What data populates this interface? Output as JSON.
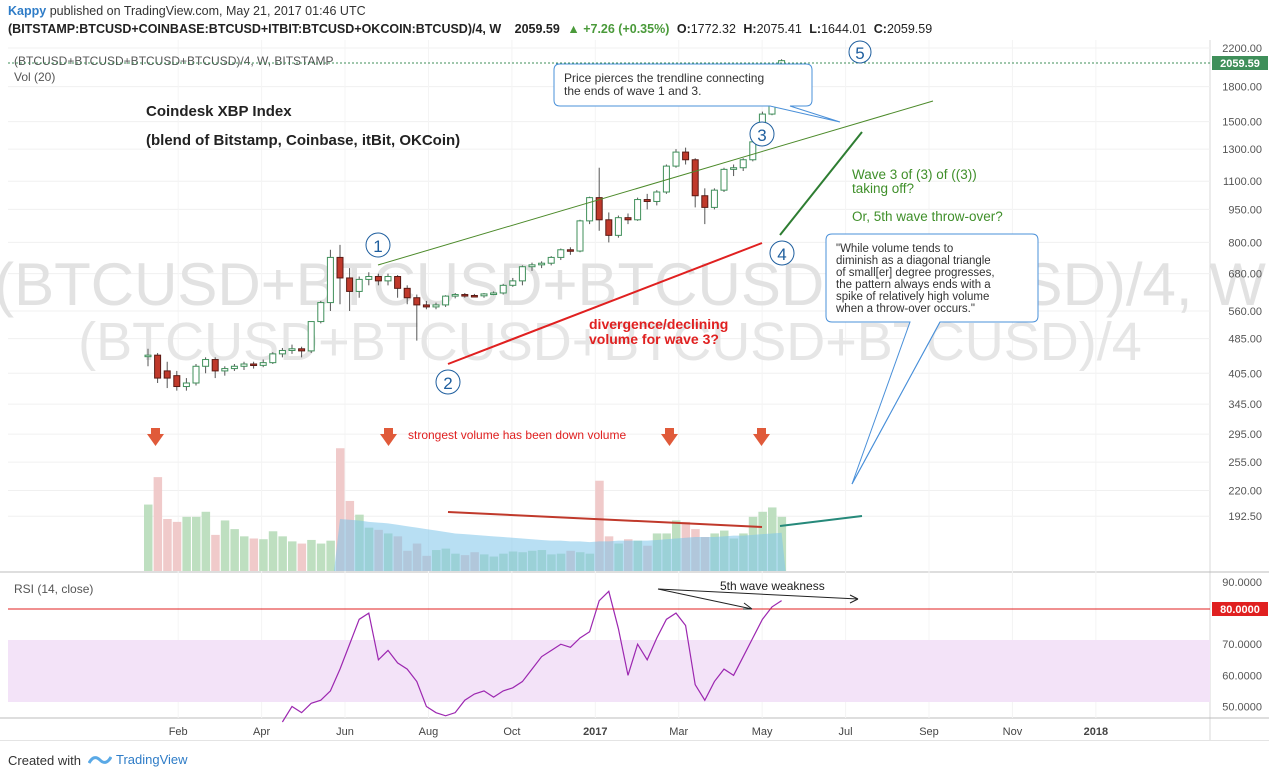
{
  "header": {
    "author": "Kappy",
    "published_text": "published on TradingView.com, May 21, 2017 01:46 UTC",
    "symbol": "(BITSTAMP:BTCUSD+COINBASE:BTCUSD+ITBIT:BTCUSD+OKCOIN:BTCUSD)/4, W",
    "last": "2059.59",
    "change": "+7.26 (+0.35%)",
    "o_label": "O:",
    "o": "1772.32",
    "h_label": "H:",
    "h": "2075.41",
    "l_label": "L:",
    "l": "1644.01",
    "c_label": "C:",
    "c": "2059.59"
  },
  "legend": {
    "series": "(BTCUSD+BTCUSD+BTCUSD+BTCUSD)/4, W, BITSTAMP",
    "volume": "Vol (20)",
    "rsi": "RSI (14, close)"
  },
  "watermark": {
    "line1": "(BTCUSD+BTCUSD+BTCUSD+BTCUSD)/4, W",
    "line2": "(BTCUSD+BTCUSD+BTCUSD+BTCUSD)/4"
  },
  "annotations": {
    "title": "Coindesk XBP Index",
    "subtitle": "(blend of Bitstamp, Coinbase, itBit, OKCoin)",
    "callout_top": [
      "Price pierces the trendline connecting",
      "the ends of wave 1 and 3."
    ],
    "wave3_line1": "Wave 3 of (3) of ((3))",
    "wave3_line2": "taking off?",
    "throwover": "Or, 5th wave throw-over?",
    "callout_volume": [
      "\"While volume tends to",
      "diminish as a diagonal triangle",
      "of small[er] degree progresses,",
      "the pattern always ends with a",
      "spike of relatively high volume",
      "when a throw-over occurs.\""
    ],
    "divergence_line1": "divergence/declining",
    "divergence_line2": "volume for wave 3?",
    "strongest_volume": "strongest volume has been down volume",
    "rsi_weakness": "5th wave weakness",
    "wave_labels": [
      "1",
      "2",
      "3",
      "4",
      "5"
    ]
  },
  "axes": {
    "price_ticks": [
      "2200.00",
      "1800.00",
      "1500.00",
      "1300.00",
      "1100.00",
      "950.00",
      "800.00",
      "680.00",
      "560.00",
      "485.00",
      "405.00",
      "345.00",
      "295.00",
      "255.00",
      "220.00",
      "192.50"
    ],
    "price_last_badge": "2059.59",
    "rsi_ticks": [
      "90.0000",
      "70.0000",
      "60.0000",
      "50.0000"
    ],
    "rsi_level_badge": "80.0000",
    "time_labels": [
      "Feb",
      "Apr",
      "Jun",
      "Aug",
      "Oct",
      "2017",
      "Mar",
      "May",
      "Jul",
      "Sep",
      "Nov",
      "2018"
    ]
  },
  "colors": {
    "up": "#3f8f5a",
    "down": "#c0392b",
    "up_volume": "#b7dbb9",
    "down_volume": "#eec4c4",
    "volume_ma": "#7dc4ea",
    "rsi_line": "#9c27b0",
    "rsi_band": "#f3e3f8",
    "trendline": "#4c8a2a",
    "callout_border": "#4a90d9"
  },
  "footer": {
    "created_with": "Created with",
    "brand": "TradingView"
  },
  "chart_data": {
    "type": "candlestick",
    "timeframe": "weekly",
    "candles": [
      {
        "o": 445,
        "h": 460,
        "l": 420,
        "c": 445
      },
      {
        "o": 445,
        "h": 450,
        "l": 385,
        "c": 395
      },
      {
        "o": 410,
        "h": 430,
        "l": 375,
        "c": 395
      },
      {
        "o": 400,
        "h": 410,
        "l": 370,
        "c": 378
      },
      {
        "o": 378,
        "h": 395,
        "l": 370,
        "c": 385
      },
      {
        "o": 385,
        "h": 425,
        "l": 380,
        "c": 420
      },
      {
        "o": 420,
        "h": 440,
        "l": 405,
        "c": 435
      },
      {
        "o": 435,
        "h": 440,
        "l": 395,
        "c": 410
      },
      {
        "o": 410,
        "h": 420,
        "l": 400,
        "c": 415
      },
      {
        "o": 415,
        "h": 425,
        "l": 410,
        "c": 420
      },
      {
        "o": 420,
        "h": 430,
        "l": 412,
        "c": 425
      },
      {
        "o": 425,
        "h": 430,
        "l": 415,
        "c": 422
      },
      {
        "o": 422,
        "h": 435,
        "l": 418,
        "c": 428
      },
      {
        "o": 428,
        "h": 452,
        "l": 425,
        "c": 448
      },
      {
        "o": 448,
        "h": 462,
        "l": 440,
        "c": 456
      },
      {
        "o": 456,
        "h": 470,
        "l": 448,
        "c": 460
      },
      {
        "o": 460,
        "h": 465,
        "l": 440,
        "c": 455
      },
      {
        "o": 455,
        "h": 530,
        "l": 450,
        "c": 530
      },
      {
        "o": 530,
        "h": 590,
        "l": 525,
        "c": 585
      },
      {
        "o": 585,
        "h": 770,
        "l": 560,
        "c": 740
      },
      {
        "o": 740,
        "h": 790,
        "l": 580,
        "c": 665
      },
      {
        "o": 665,
        "h": 700,
        "l": 560,
        "c": 620
      },
      {
        "o": 620,
        "h": 670,
        "l": 600,
        "c": 660
      },
      {
        "o": 660,
        "h": 685,
        "l": 640,
        "c": 670
      },
      {
        "o": 670,
        "h": 680,
        "l": 640,
        "c": 655
      },
      {
        "o": 655,
        "h": 680,
        "l": 640,
        "c": 670
      },
      {
        "o": 670,
        "h": 675,
        "l": 600,
        "c": 630
      },
      {
        "o": 630,
        "h": 640,
        "l": 580,
        "c": 600
      },
      {
        "o": 600,
        "h": 610,
        "l": 480,
        "c": 578
      },
      {
        "o": 578,
        "h": 590,
        "l": 565,
        "c": 572
      },
      {
        "o": 572,
        "h": 585,
        "l": 565,
        "c": 578
      },
      {
        "o": 578,
        "h": 608,
        "l": 572,
        "c": 605
      },
      {
        "o": 605,
        "h": 615,
        "l": 598,
        "c": 610
      },
      {
        "o": 610,
        "h": 615,
        "l": 600,
        "c": 607
      },
      {
        "o": 607,
        "h": 612,
        "l": 603,
        "c": 606
      },
      {
        "o": 606,
        "h": 615,
        "l": 600,
        "c": 612
      },
      {
        "o": 612,
        "h": 620,
        "l": 608,
        "c": 615
      },
      {
        "o": 615,
        "h": 645,
        "l": 610,
        "c": 640
      },
      {
        "o": 640,
        "h": 665,
        "l": 635,
        "c": 655
      },
      {
        "o": 655,
        "h": 710,
        "l": 640,
        "c": 705
      },
      {
        "o": 705,
        "h": 720,
        "l": 690,
        "c": 712
      },
      {
        "o": 712,
        "h": 725,
        "l": 700,
        "c": 718
      },
      {
        "o": 718,
        "h": 745,
        "l": 710,
        "c": 740
      },
      {
        "o": 740,
        "h": 775,
        "l": 730,
        "c": 770
      },
      {
        "o": 770,
        "h": 780,
        "l": 750,
        "c": 765
      },
      {
        "o": 765,
        "h": 900,
        "l": 760,
        "c": 895
      },
      {
        "o": 895,
        "h": 1015,
        "l": 880,
        "c": 1010
      },
      {
        "o": 1010,
        "h": 1180,
        "l": 850,
        "c": 900
      },
      {
        "o": 900,
        "h": 935,
        "l": 800,
        "c": 830
      },
      {
        "o": 830,
        "h": 920,
        "l": 820,
        "c": 910
      },
      {
        "o": 910,
        "h": 930,
        "l": 880,
        "c": 900
      },
      {
        "o": 900,
        "h": 1010,
        "l": 895,
        "c": 1000
      },
      {
        "o": 1000,
        "h": 1030,
        "l": 950,
        "c": 990
      },
      {
        "o": 990,
        "h": 1050,
        "l": 970,
        "c": 1040
      },
      {
        "o": 1040,
        "h": 1200,
        "l": 1030,
        "c": 1190
      },
      {
        "o": 1190,
        "h": 1300,
        "l": 1180,
        "c": 1280
      },
      {
        "o": 1280,
        "h": 1310,
        "l": 1200,
        "c": 1230
      },
      {
        "o": 1230,
        "h": 1240,
        "l": 960,
        "c": 1020
      },
      {
        "o": 1020,
        "h": 1060,
        "l": 880,
        "c": 960
      },
      {
        "o": 960,
        "h": 1060,
        "l": 950,
        "c": 1050
      },
      {
        "o": 1050,
        "h": 1180,
        "l": 1040,
        "c": 1170
      },
      {
        "o": 1170,
        "h": 1200,
        "l": 1130,
        "c": 1180
      },
      {
        "o": 1180,
        "h": 1240,
        "l": 1160,
        "c": 1230
      },
      {
        "o": 1230,
        "h": 1360,
        "l": 1220,
        "c": 1350
      },
      {
        "o": 1350,
        "h": 1580,
        "l": 1340,
        "c": 1560
      },
      {
        "o": 1560,
        "h": 1780,
        "l": 1550,
        "c": 1772
      },
      {
        "o": 1772.32,
        "h": 2075.41,
        "l": 1644.01,
        "c": 2059.59
      }
    ],
    "volume_values": [
      92,
      130,
      72,
      68,
      75,
      75,
      82,
      50,
      70,
      58,
      48,
      45,
      44,
      55,
      48,
      41,
      38,
      43,
      38,
      42,
      170,
      97,
      78,
      60,
      57,
      52,
      48,
      28,
      38,
      21,
      29,
      31,
      24,
      22,
      26,
      23,
      20,
      24,
      27,
      26,
      28,
      29,
      23,
      24,
      28,
      26,
      24,
      125,
      48,
      38,
      44,
      42,
      35,
      52,
      52,
      70,
      68,
      58,
      47,
      52,
      56,
      45,
      52,
      75,
      82,
      88,
      75
    ],
    "volume_ma_values": [
      null,
      null,
      null,
      null,
      null,
      null,
      null,
      null,
      null,
      null,
      null,
      null,
      null,
      null,
      null,
      null,
      null,
      null,
      null,
      null,
      72,
      71,
      70,
      68,
      67,
      66,
      64,
      62,
      60,
      58,
      56,
      54,
      52,
      51,
      50,
      49,
      48,
      47,
      46,
      45,
      44,
      43,
      42,
      42,
      41,
      41,
      40,
      41,
      41,
      42,
      42,
      42,
      42,
      43,
      44,
      45,
      46,
      47,
      47,
      47,
      48,
      49,
      49,
      50,
      51,
      52,
      53
    ],
    "rsi_values": [
      null,
      null,
      null,
      null,
      null,
      null,
      null,
      null,
      null,
      null,
      null,
      null,
      null,
      null,
      45,
      50,
      48,
      51,
      52,
      55,
      62,
      70,
      78,
      80,
      65,
      68,
      64,
      62,
      58,
      50,
      48,
      47,
      48,
      52,
      54,
      55,
      53,
      55,
      56,
      58,
      62,
      66,
      68,
      70,
      69,
      72,
      74,
      84,
      87,
      75,
      60,
      70,
      65,
      72,
      78,
      80,
      76,
      57,
      52,
      58,
      62,
      60,
      66,
      72,
      78,
      82,
      84
    ],
    "rsi_ylim": [
      45,
      90
    ],
    "rsi_overbought": 80,
    "rsi_oversold_band": [
      50,
      70
    ],
    "price_scale": "log",
    "price_ylim": [
      385,
      2200
    ],
    "volume_ylim": [
      0,
      180
    ]
  }
}
